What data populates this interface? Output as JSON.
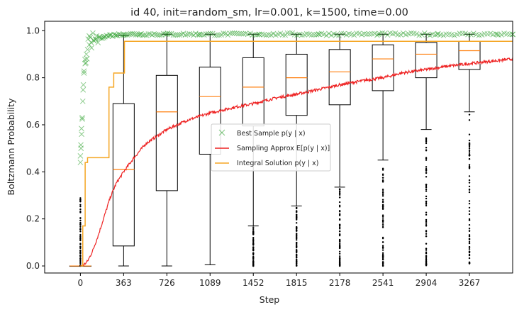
{
  "chart_data": {
    "type": "line",
    "title": "id 40, init=random_sm, lr=0.001, k=1500, time=0.00",
    "xlabel": "Step",
    "ylabel": "Boltzmann Probability",
    "xlim": [
      -300,
      3630
    ],
    "ylim": [
      -0.03,
      1.04
    ],
    "x_ticks": [
      0,
      363,
      726,
      1089,
      1452,
      1815,
      2178,
      2541,
      2904,
      3267
    ],
    "y_ticks": [
      0.0,
      0.2,
      0.4,
      0.6,
      0.8,
      1.0
    ],
    "y_tick_labels": [
      "0.0",
      "0.2",
      "0.4",
      "0.6",
      "0.8",
      "1.0"
    ],
    "grid": false,
    "legend_position": "center",
    "colors": {
      "best_sample": "#2ca02c",
      "sampling_approx": "#ee2222",
      "integral_solution": "#f5a623",
      "box": "#000000",
      "median": "#ff7f0e"
    },
    "series": [
      {
        "name": "Best Sample p(y | x)",
        "kind": "scatter-x",
        "x": [
          0,
          5,
          10,
          15,
          20,
          25,
          30,
          40,
          50,
          60,
          75,
          90,
          110,
          130,
          160,
          200,
          250,
          300,
          363,
          500,
          726,
          1000,
          1500,
          2000,
          2500,
          3000,
          3500,
          3630
        ],
        "y": [
          0.44,
          0.5,
          0.56,
          0.63,
          0.7,
          0.77,
          0.82,
          0.86,
          0.9,
          0.92,
          0.94,
          0.95,
          0.96,
          0.965,
          0.97,
          0.975,
          0.98,
          0.982,
          0.985,
          0.985,
          0.985,
          0.985,
          0.985,
          0.985,
          0.985,
          0.985,
          0.985,
          0.985
        ]
      },
      {
        "name": "Sampling Approx E[p(y | x)]",
        "kind": "line",
        "x": [
          0,
          30,
          60,
          100,
          150,
          200,
          250,
          300,
          363,
          450,
          550,
          726,
          900,
          1089,
          1300,
          1452,
          1650,
          1815,
          2000,
          2178,
          2400,
          2541,
          2700,
          2904,
          3100,
          3267,
          3450,
          3630
        ],
        "y": [
          0.0,
          0.005,
          0.02,
          0.06,
          0.13,
          0.21,
          0.29,
          0.35,
          0.4,
          0.46,
          0.52,
          0.58,
          0.62,
          0.65,
          0.675,
          0.69,
          0.715,
          0.73,
          0.75,
          0.77,
          0.79,
          0.8,
          0.82,
          0.835,
          0.85,
          0.86,
          0.87,
          0.88
        ]
      },
      {
        "name": "Integral Solution p(y | x)",
        "kind": "step",
        "x": [
          0,
          20,
          20,
          40,
          40,
          60,
          60,
          240,
          240,
          280,
          280,
          320,
          320,
          370,
          370,
          3630
        ],
        "y": [
          0.0,
          0.0,
          0.17,
          0.17,
          0.44,
          0.44,
          0.46,
          0.46,
          0.76,
          0.76,
          0.82,
          0.82,
          0.82,
          0.82,
          0.955,
          0.955
        ]
      }
    ],
    "boxes": [
      {
        "x": 0,
        "whisker_low": 0.0,
        "q1": 0.0,
        "median": 0.0,
        "q3": 0.0,
        "whisker_high": 0.0,
        "fliers_from": 0.0,
        "fliers_to": 0.32
      },
      {
        "x": 363,
        "whisker_low": 0.0,
        "q1": 0.085,
        "median": 0.41,
        "q3": 0.69,
        "whisker_high": 0.98,
        "fliers_from": null,
        "fliers_to": null
      },
      {
        "x": 726,
        "whisker_low": 0.0,
        "q1": 0.32,
        "median": 0.655,
        "q3": 0.81,
        "whisker_high": 0.985,
        "fliers_from": null,
        "fliers_to": null
      },
      {
        "x": 1089,
        "whisker_low": 0.005,
        "q1": 0.475,
        "median": 0.72,
        "q3": 0.845,
        "whisker_high": 0.985,
        "fliers_from": null,
        "fliers_to": null
      },
      {
        "x": 1452,
        "whisker_low": 0.17,
        "q1": 0.595,
        "median": 0.76,
        "q3": 0.885,
        "whisker_high": 0.985,
        "fliers_from": 0.0,
        "fliers_to": 0.165
      },
      {
        "x": 1815,
        "whisker_low": 0.255,
        "q1": 0.64,
        "median": 0.8,
        "q3": 0.9,
        "whisker_high": 0.985,
        "fliers_from": 0.0,
        "fliers_to": 0.25
      },
      {
        "x": 2178,
        "whisker_low": 0.335,
        "q1": 0.685,
        "median": 0.825,
        "q3": 0.92,
        "whisker_high": 0.985,
        "fliers_from": 0.0,
        "fliers_to": 0.33
      },
      {
        "x": 2541,
        "whisker_low": 0.45,
        "q1": 0.745,
        "median": 0.88,
        "q3": 0.94,
        "whisker_high": 0.985,
        "fliers_from": 0.0,
        "fliers_to": 0.445
      },
      {
        "x": 2904,
        "whisker_low": 0.58,
        "q1": 0.8,
        "median": 0.9,
        "q3": 0.95,
        "whisker_high": 0.985,
        "fliers_from": 0.0,
        "fliers_to": 0.575
      },
      {
        "x": 3267,
        "whisker_low": 0.655,
        "q1": 0.835,
        "median": 0.915,
        "q3": 0.955,
        "whisker_high": 0.985,
        "fliers_from": 0.01,
        "fliers_to": 0.65
      }
    ],
    "legend": [
      {
        "label": "Best Sample p(y | x)",
        "marker": "x"
      },
      {
        "label": "Sampling Approx E[p(y | x)]",
        "marker": "line"
      },
      {
        "label": "Integral Solution p(y | x)",
        "marker": "line"
      }
    ]
  }
}
